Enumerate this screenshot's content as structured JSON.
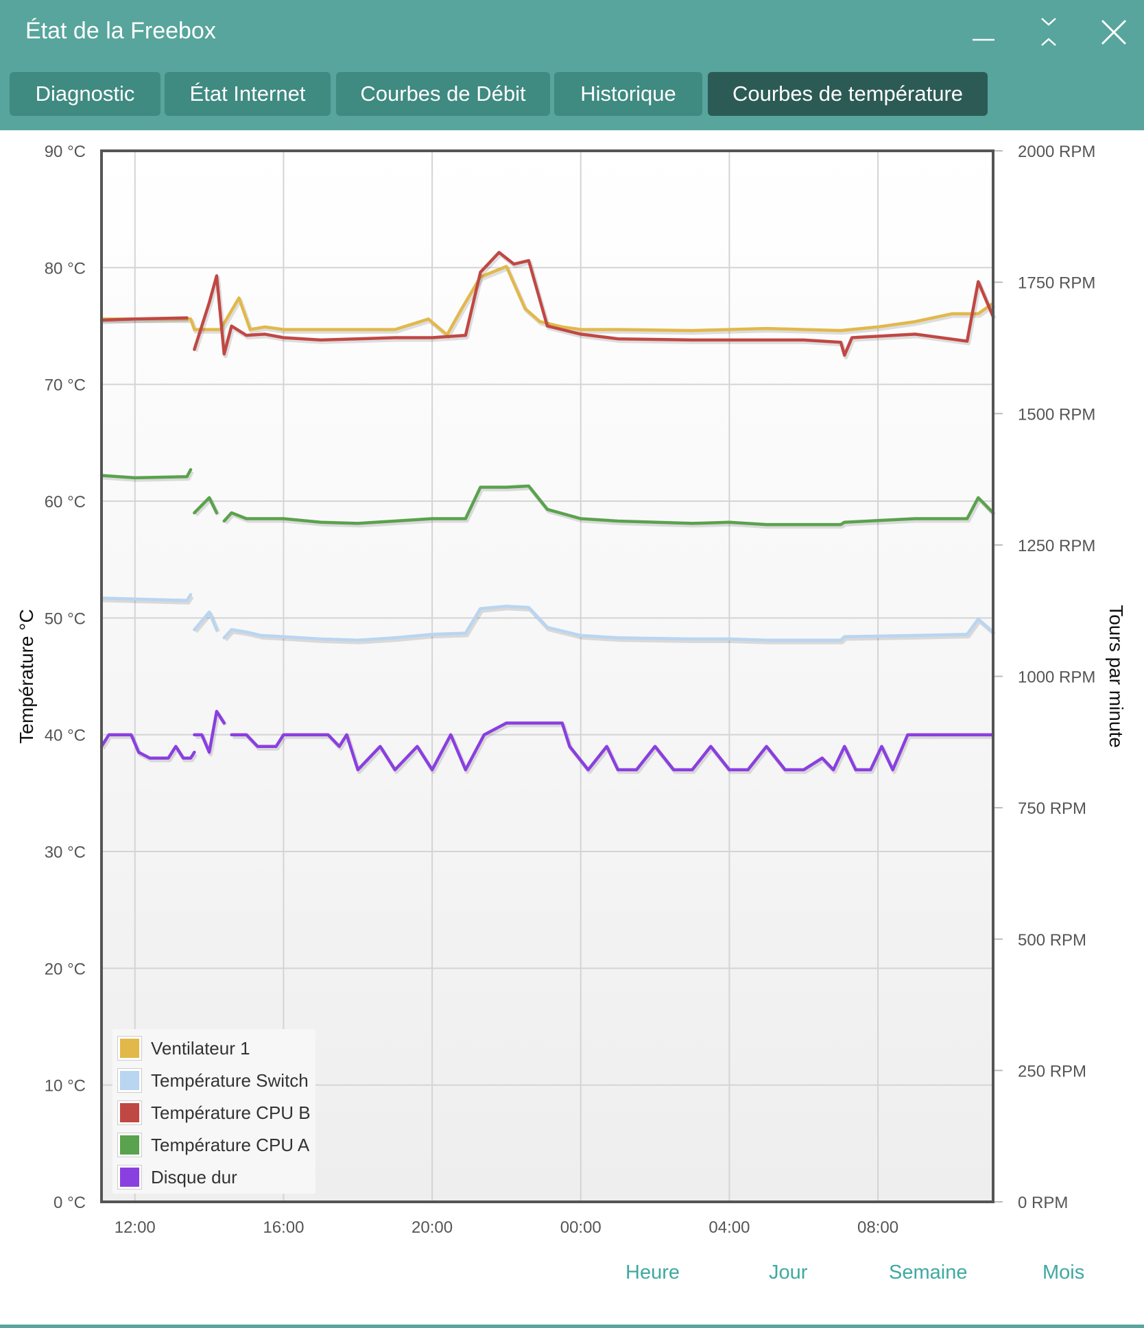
{
  "window": {
    "title": "État de la Freebox",
    "controls": [
      "minimize-icon",
      "maximize-icon",
      "close-icon"
    ]
  },
  "tabs": [
    {
      "label": "Diagnostic",
      "active": false
    },
    {
      "label": "État Internet",
      "active": false
    },
    {
      "label": "Courbes de Débit",
      "active": false
    },
    {
      "label": "Historique",
      "active": false
    },
    {
      "label": "Courbes de température",
      "active": true
    }
  ],
  "period": {
    "links": [
      "Heure",
      "Jour",
      "Semaine",
      "Mois"
    ]
  },
  "chart_data": {
    "type": "line",
    "ylabel": "Température °C",
    "y2label": "Tours par minute",
    "ylim": [
      0,
      90
    ],
    "y2lim": [
      0,
      2000
    ],
    "y_ticks": [
      "90 °C",
      "80 °C",
      "70 °C",
      "60 °C",
      "50 °C",
      "40 °C",
      "30 °C",
      "20 °C",
      "10 °C",
      "0 °C"
    ],
    "y2_ticks": [
      "2000 RPM",
      "1750 RPM",
      "1500 RPM",
      "1250 RPM",
      "1000 RPM",
      "750 RPM",
      "500 RPM",
      "250 RPM",
      "0 RPM"
    ],
    "x_ticks": [
      {
        "label": "12:00",
        "x": 1
      },
      {
        "label": "16:00",
        "x": 5
      },
      {
        "label": "20:00",
        "x": 9
      },
      {
        "label": "00:00",
        "x": 13
      },
      {
        "label": "04:00",
        "x": 17
      },
      {
        "label": "08:00",
        "x": 21
      }
    ],
    "xlim": [
      0.1,
      24.1
    ],
    "grid": true,
    "legend_position": "bottom-left",
    "legend": [
      "Ventilateur 1",
      "Température Switch",
      "Température CPU B",
      "Température CPU A",
      "Disque dur"
    ],
    "series": [
      {
        "name": "Ventilateur 1",
        "axis": "right",
        "color": "#e2b84a",
        "points": [
          [
            0.1,
            1680
          ],
          [
            2.5,
            1680
          ],
          [
            2.6,
            1660
          ],
          [
            3.3,
            1660
          ],
          [
            3.8,
            1720
          ],
          [
            4.1,
            1660
          ],
          [
            4.5,
            1665
          ],
          [
            5,
            1660
          ],
          [
            6,
            1660
          ],
          [
            8,
            1660
          ],
          [
            8.9,
            1680
          ],
          [
            9.4,
            1650
          ],
          [
            9.8,
            1700
          ],
          [
            10.3,
            1760
          ],
          [
            11.0,
            1780
          ],
          [
            11.5,
            1700
          ],
          [
            11.9,
            1675
          ],
          [
            12.5,
            1665
          ],
          [
            13,
            1660
          ],
          [
            14,
            1660
          ],
          [
            16,
            1658
          ],
          [
            17,
            1660
          ],
          [
            18,
            1662
          ],
          [
            19,
            1660
          ],
          [
            20,
            1658
          ],
          [
            21,
            1665
          ],
          [
            22,
            1675
          ],
          [
            23,
            1690
          ],
          [
            23.7,
            1690
          ],
          [
            24.1,
            1710
          ]
        ]
      },
      {
        "name": "Température Switch",
        "color": "#b9d5f1",
        "points": [
          [
            0.1,
            51.7
          ],
          [
            2.4,
            51.5
          ],
          [
            2.5,
            52
          ],
          null,
          [
            2.6,
            49
          ],
          [
            3.0,
            50.5
          ],
          [
            3.2,
            49
          ],
          null,
          [
            3.4,
            48.3
          ],
          [
            3.6,
            49
          ],
          [
            4,
            48.8
          ],
          [
            4.4,
            48.5
          ],
          [
            5,
            48.4
          ],
          [
            6,
            48.2
          ],
          [
            7,
            48.1
          ],
          [
            8,
            48.3
          ],
          [
            9,
            48.6
          ],
          [
            9.9,
            48.7
          ],
          [
            10.3,
            50.8
          ],
          [
            11.0,
            51
          ],
          [
            11.6,
            50.9
          ],
          [
            12.1,
            49.2
          ],
          [
            13,
            48.5
          ],
          [
            14,
            48.3
          ],
          [
            16,
            48.2
          ],
          [
            17,
            48.2
          ],
          [
            18,
            48.1
          ],
          [
            20,
            48.1
          ],
          [
            20.1,
            48.4
          ],
          [
            22,
            48.5
          ],
          [
            23.4,
            48.6
          ],
          [
            23.7,
            49.9
          ],
          [
            24.1,
            48.8
          ]
        ]
      },
      {
        "name": "Température CPU B",
        "color": "#c04844",
        "points": [
          [
            0.1,
            75.5
          ],
          [
            1,
            75.6
          ],
          [
            2.4,
            75.7
          ],
          null,
          [
            2.6,
            73
          ],
          [
            3.0,
            77
          ],
          [
            3.2,
            79.3
          ],
          [
            3.4,
            72.6
          ],
          [
            3.6,
            75
          ],
          [
            4,
            74.2
          ],
          [
            4.5,
            74.3
          ],
          [
            5,
            74
          ],
          [
            6,
            73.8
          ],
          [
            7,
            73.9
          ],
          [
            8,
            74
          ],
          [
            9,
            74
          ],
          [
            9.9,
            74.2
          ],
          [
            10.3,
            79.6
          ],
          [
            10.8,
            81.3
          ],
          [
            11.2,
            80.3
          ],
          [
            11.6,
            80.6
          ],
          [
            12.1,
            75
          ],
          [
            13,
            74.3
          ],
          [
            14,
            73.9
          ],
          [
            16,
            73.8
          ],
          [
            17,
            73.8
          ],
          [
            18,
            73.8
          ],
          [
            19,
            73.8
          ],
          [
            20,
            73.6
          ],
          [
            20.1,
            72.5
          ],
          [
            20.3,
            74
          ],
          [
            22,
            74.3
          ],
          [
            23.4,
            73.7
          ],
          [
            23.7,
            78.8
          ],
          [
            24.1,
            75.8
          ]
        ]
      },
      {
        "name": "Température CPU A",
        "color": "#5aa24d",
        "points": [
          [
            0.1,
            62.2
          ],
          [
            1,
            62
          ],
          [
            2.4,
            62.1
          ],
          [
            2.5,
            62.7
          ],
          null,
          [
            2.6,
            59
          ],
          [
            3.0,
            60.3
          ],
          [
            3.2,
            59
          ],
          null,
          [
            3.4,
            58.3
          ],
          [
            3.6,
            59
          ],
          [
            4,
            58.5
          ],
          [
            4.4,
            58.5
          ],
          [
            5,
            58.5
          ],
          [
            6,
            58.2
          ],
          [
            7,
            58.1
          ],
          [
            8,
            58.3
          ],
          [
            9,
            58.5
          ],
          [
            9.9,
            58.5
          ],
          [
            10.3,
            61.2
          ],
          [
            11.0,
            61.2
          ],
          [
            11.6,
            61.3
          ],
          [
            12.1,
            59.3
          ],
          [
            13,
            58.5
          ],
          [
            14,
            58.3
          ],
          [
            16,
            58.1
          ],
          [
            17,
            58.2
          ],
          [
            18,
            58
          ],
          [
            20,
            58
          ],
          [
            20.1,
            58.2
          ],
          [
            22,
            58.5
          ],
          [
            23.4,
            58.5
          ],
          [
            23.7,
            60.3
          ],
          [
            24.1,
            59
          ]
        ]
      },
      {
        "name": "Disque dur",
        "color": "#8a3fe0",
        "points": [
          [
            0.1,
            39
          ],
          [
            0.3,
            40
          ],
          [
            0.9,
            40
          ],
          [
            1.1,
            38.5
          ],
          [
            1.4,
            38
          ],
          [
            1.9,
            38
          ],
          [
            2.1,
            39
          ],
          [
            2.3,
            38
          ],
          [
            2.5,
            38
          ],
          [
            2.6,
            38.5
          ],
          null,
          [
            2.6,
            40
          ],
          [
            2.8,
            40
          ],
          [
            3.0,
            38.5
          ],
          [
            3.2,
            42
          ],
          [
            3.4,
            41
          ],
          null,
          [
            3.6,
            40
          ],
          [
            4.0,
            40
          ],
          [
            4.3,
            39
          ],
          [
            4.8,
            39
          ],
          [
            5.0,
            40
          ],
          [
            6.2,
            40
          ],
          [
            6.5,
            39
          ],
          [
            6.7,
            40
          ],
          [
            7.0,
            37
          ],
          [
            7.6,
            39
          ],
          [
            8.0,
            37
          ],
          [
            8.6,
            39
          ],
          [
            9.0,
            37
          ],
          [
            9.5,
            40
          ],
          [
            9.9,
            37
          ],
          [
            10.4,
            40
          ],
          [
            11.0,
            41
          ],
          [
            12.5,
            41
          ],
          [
            12.7,
            39
          ],
          [
            13.2,
            37
          ],
          [
            13.7,
            39
          ],
          [
            14.0,
            37
          ],
          [
            14.5,
            37
          ],
          [
            15.0,
            39
          ],
          [
            15.5,
            37
          ],
          [
            16.0,
            37
          ],
          [
            16.5,
            39
          ],
          [
            17.0,
            37
          ],
          [
            17.5,
            37
          ],
          [
            18.0,
            39
          ],
          [
            18.5,
            37
          ],
          [
            19.0,
            37
          ],
          [
            19.5,
            38
          ],
          [
            19.8,
            37
          ],
          [
            20.1,
            39
          ],
          [
            20.4,
            37
          ],
          [
            20.8,
            37
          ],
          [
            21.1,
            39
          ],
          [
            21.4,
            37
          ],
          [
            21.8,
            40
          ],
          [
            24.1,
            40
          ]
        ]
      }
    ]
  }
}
